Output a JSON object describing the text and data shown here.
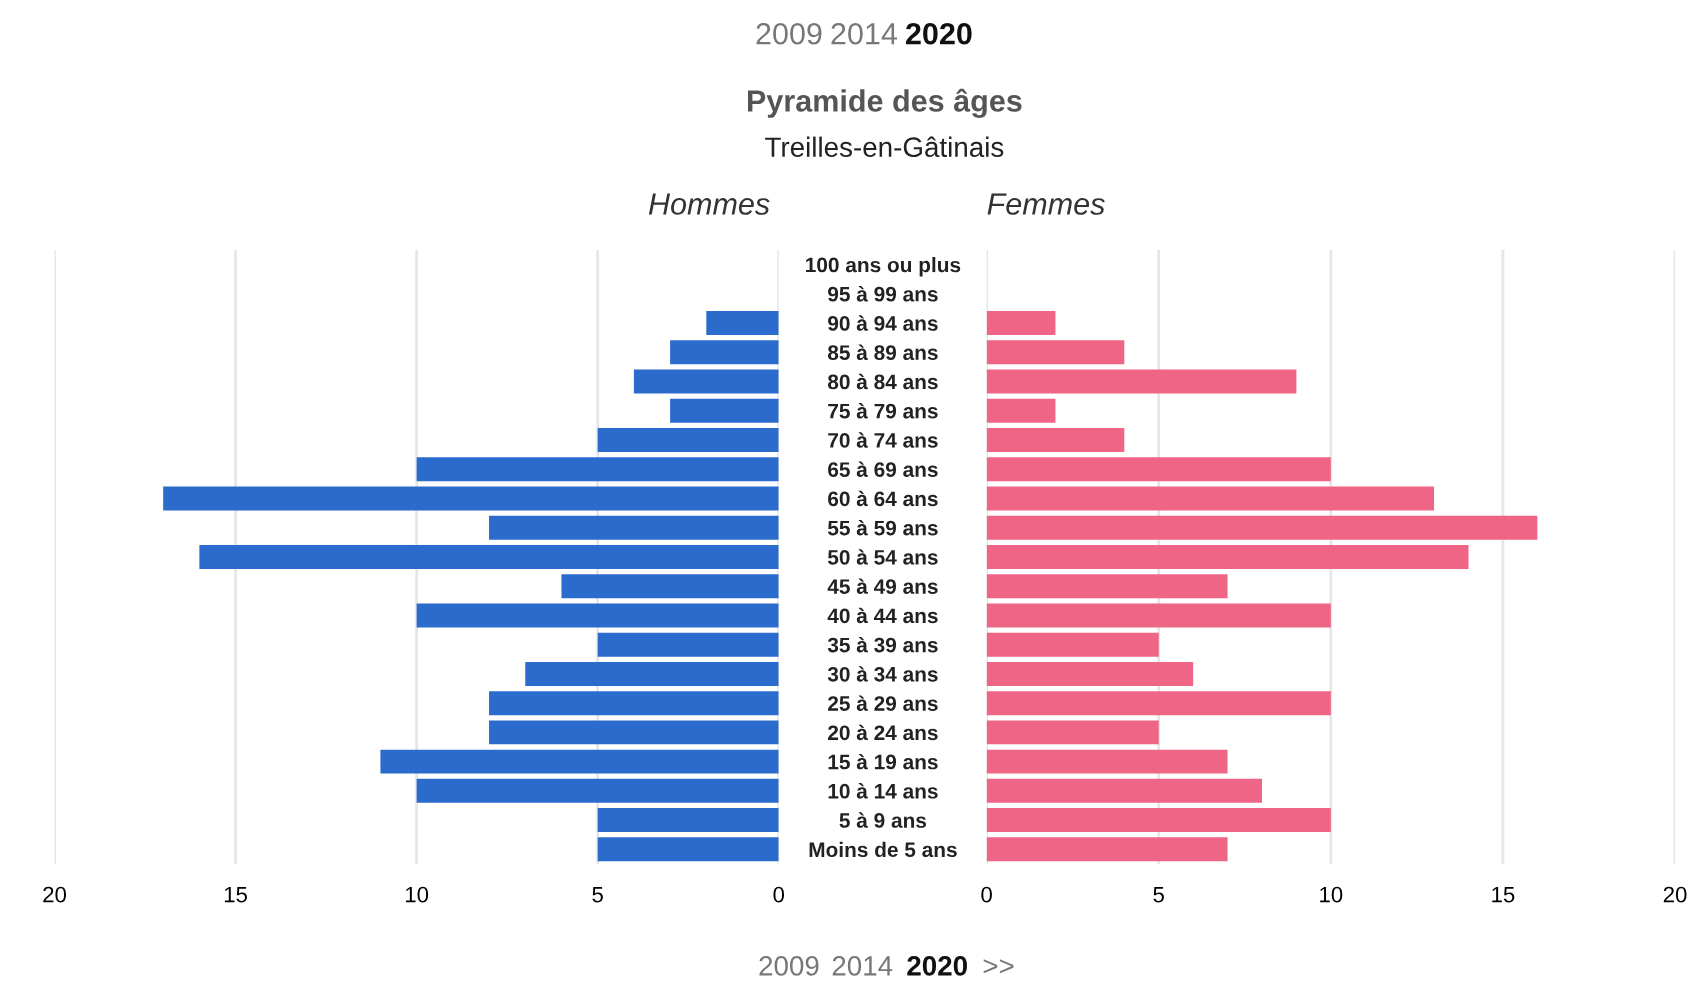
{
  "chart_data": [
    {
      "type": "bar",
      "orientation": "horizontal",
      "title": "Pyramide des âges",
      "subtitle": "Treilles-en-Gâtinais",
      "annotations": [
        "2009",
        "2014",
        "2020",
        "2009",
        "2014",
        "2020",
        ">>"
      ],
      "categories": [
        "100 ans ou plus",
        "95 à 99 ans",
        "90 à 94 ans",
        "85 à 89 ans",
        "80 à 84 ans",
        "75 à 79 ans",
        "70 à 74 ans",
        "65 à 69 ans",
        "60 à 64 ans",
        "55 à 59 ans",
        "50 à 54 ans",
        "45 à 49 ans",
        "40 à 44 ans",
        "35 à 39 ans",
        "30 à 34 ans",
        "25 à 29 ans",
        "20 à 24 ans",
        "15 à 19 ans",
        "10 à 14 ans",
        "5 à 9 ans",
        "Moins de 5 ans"
      ],
      "series": [
        {
          "name": "Hommes",
          "color": "#2b6bcc",
          "values": [
            0,
            0,
            2,
            3,
            4,
            3,
            5,
            10,
            17,
            8,
            16,
            6,
            10,
            5,
            7,
            8,
            8,
            11,
            10,
            5,
            5
          ]
        }
      ],
      "xlim": [
        20,
        0
      ],
      "xticks": [
        20,
        15,
        10,
        5,
        0
      ],
      "grid": "x",
      "legend": false
    },
    {
      "type": "bar",
      "orientation": "horizontal",
      "series": [
        {
          "name": "Femmes",
          "color": "#ef6585",
          "values": [
            0,
            0,
            2,
            4,
            9,
            2,
            4,
            10,
            13,
            16,
            14,
            7,
            10,
            5,
            6,
            10,
            5,
            7,
            8,
            10,
            7
          ]
        }
      ],
      "xlim": [
        0,
        20
      ],
      "xticks": [
        0,
        5,
        10,
        15,
        20
      ],
      "grid": "x",
      "legend": false,
      "tick_labels": "x"
    }
  ]
}
